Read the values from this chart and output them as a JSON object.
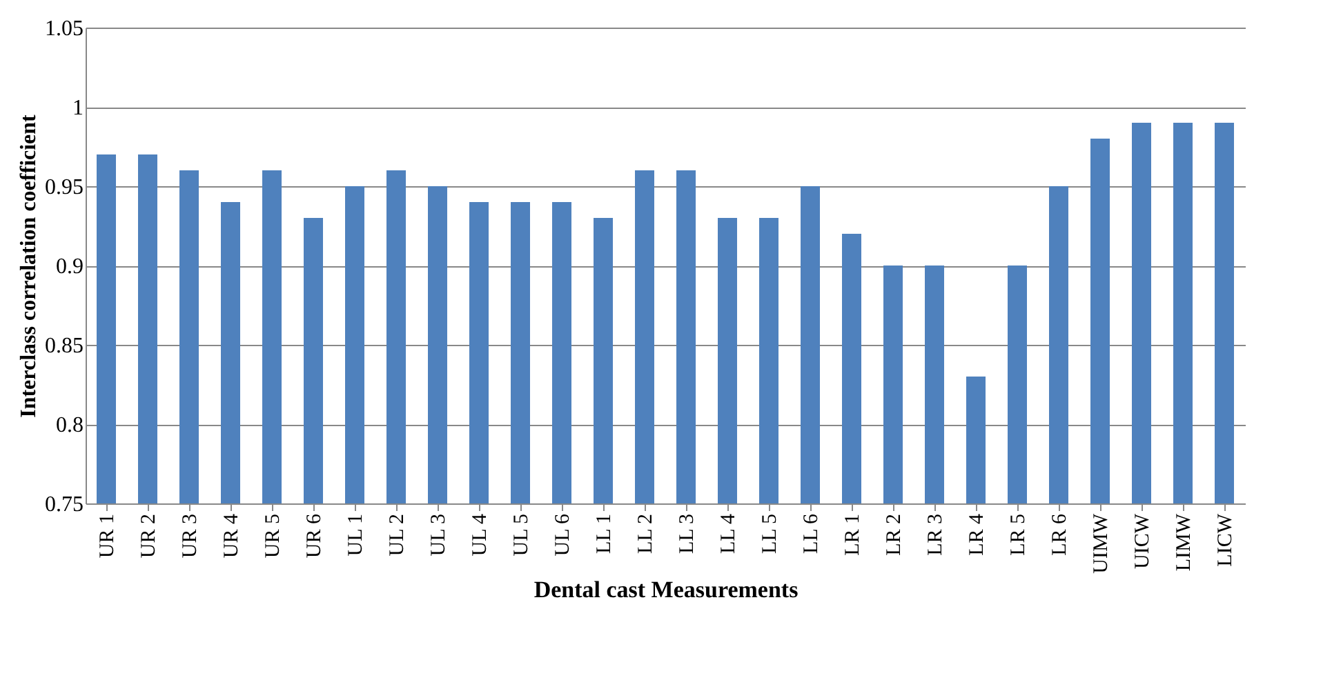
{
  "chart_data": {
    "type": "bar",
    "xlabel": "Dental cast  Measurements",
    "ylabel": "Interclass correlation  coefficient",
    "categories": [
      "UR 1",
      "UR 2",
      "UR 3",
      "UR 4",
      "UR 5",
      "UR 6",
      "UL 1",
      "UL 2",
      "UL 3",
      "UL 4",
      "UL 5",
      "UL 6",
      "LL 1",
      "LL 2",
      "LL 3",
      "LL 4",
      "LL 5",
      "LL 6",
      "LR 1",
      "LR 2",
      "LR 3",
      "LR 4",
      "LR 5",
      "LR 6",
      "UIMW",
      "UICW",
      "LIMW",
      "LICW"
    ],
    "values": [
      0.97,
      0.97,
      0.96,
      0.94,
      0.96,
      0.93,
      0.95,
      0.96,
      0.95,
      0.94,
      0.94,
      0.94,
      0.93,
      0.96,
      0.96,
      0.93,
      0.93,
      0.95,
      0.92,
      0.9,
      0.9,
      0.83,
      0.9,
      0.95,
      0.98,
      0.99,
      0.99,
      0.99
    ],
    "color": "#4f81bd",
    "ylim": [
      0.75,
      1.05
    ],
    "yticks": [
      0.75,
      0.8,
      0.85,
      0.9,
      0.95,
      1,
      1.05
    ],
    "grid": "y"
  }
}
